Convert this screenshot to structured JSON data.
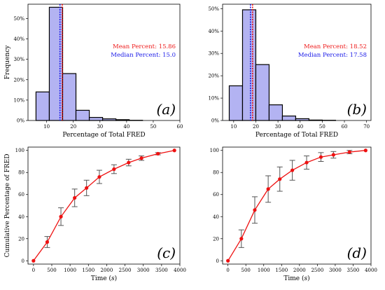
{
  "chart_data": [
    {
      "id": "a",
      "type": "bar",
      "panel_label": "(a)",
      "xlabel": "Percentage of Total FRED",
      "ylabel": "Frequency",
      "xlim": [
        3,
        60
      ],
      "ylim": [
        0,
        0.57
      ],
      "xticks": [
        10,
        20,
        30,
        40,
        50,
        60
      ],
      "yticks": [
        0,
        0.1,
        0.2,
        0.3,
        0.4,
        0.5
      ],
      "ytick_labels": [
        "0%",
        "10%",
        "20%",
        "30%",
        "40%",
        "50%"
      ],
      "bins": [
        {
          "x0": 6,
          "x1": 11,
          "value": 0.14
        },
        {
          "x0": 11,
          "x1": 16,
          "value": 0.555
        },
        {
          "x0": 16,
          "x1": 21,
          "value": 0.23
        },
        {
          "x0": 21,
          "x1": 26,
          "value": 0.05
        },
        {
          "x0": 26,
          "x1": 31,
          "value": 0.015
        },
        {
          "x0": 31,
          "x1": 36,
          "value": 0.008
        },
        {
          "x0": 36,
          "x1": 41,
          "value": 0.004
        },
        {
          "x0": 41,
          "x1": 46,
          "value": 0.001
        }
      ],
      "mean_value": 15.86,
      "median_value": 15.0,
      "mean_text": "Mean Percent: 15.86",
      "median_text": "Median Percent: 15.0"
    },
    {
      "id": "b",
      "type": "bar",
      "panel_label": "(b)",
      "xlabel": "Percentage of Total FRED",
      "ylabel": "",
      "xlim": [
        5,
        72
      ],
      "ylim": [
        0,
        0.52
      ],
      "xticks": [
        10,
        20,
        30,
        40,
        50,
        60,
        70
      ],
      "yticks": [
        0,
        0.1,
        0.2,
        0.3,
        0.4,
        0.5
      ],
      "ytick_labels": [
        "0%",
        "10%",
        "20%",
        "30%",
        "40%",
        "50%"
      ],
      "bins": [
        {
          "x0": 8,
          "x1": 14,
          "value": 0.155
        },
        {
          "x0": 14,
          "x1": 20,
          "value": 0.495
        },
        {
          "x0": 20,
          "x1": 26,
          "value": 0.25
        },
        {
          "x0": 26,
          "x1": 32,
          "value": 0.07
        },
        {
          "x0": 32,
          "x1": 38,
          "value": 0.02
        },
        {
          "x0": 38,
          "x1": 44,
          "value": 0.008
        },
        {
          "x0": 44,
          "x1": 50,
          "value": 0.002
        },
        {
          "x0": 50,
          "x1": 56,
          "value": 0.001
        }
      ],
      "mean_value": 18.52,
      "median_value": 17.58,
      "mean_text": "Mean Percent: 18.52",
      "median_text": "Median Percent: 17.58"
    },
    {
      "id": "c",
      "type": "line",
      "panel_label": "(c)",
      "xlabel": "Time (s)",
      "ylabel": "Cumulative Percentage of FRED",
      "xlim": [
        -150,
        4000
      ],
      "ylim": [
        -3,
        103
      ],
      "xticks": [
        0,
        500,
        1000,
        1500,
        2000,
        2500,
        3000,
        3500,
        4000
      ],
      "yticks": [
        0,
        20,
        40,
        60,
        80,
        100
      ],
      "x": [
        0,
        375,
        750,
        1125,
        1450,
        1800,
        2200,
        2600,
        2950,
        3400,
        3850
      ],
      "y": [
        0,
        17,
        40,
        57,
        66,
        76,
        83,
        89,
        93,
        97,
        100
      ],
      "err": [
        0,
        5,
        8,
        8,
        7,
        6,
        4,
        3,
        2,
        1,
        0
      ]
    },
    {
      "id": "d",
      "type": "line",
      "panel_label": "(d)",
      "xlabel": "Time (s)",
      "ylabel": "",
      "xlim": [
        -150,
        4000
      ],
      "ylim": [
        -3,
        103
      ],
      "xticks": [
        0,
        500,
        1000,
        1500,
        2000,
        2500,
        3000,
        3500,
        4000
      ],
      "yticks": [
        0,
        20,
        40,
        60,
        80,
        100
      ],
      "x": [
        0,
        375,
        750,
        1125,
        1450,
        1800,
        2200,
        2600,
        2950,
        3400,
        3850
      ],
      "y": [
        0,
        20,
        46,
        65,
        74,
        82,
        89,
        94,
        96,
        98.5,
        100
      ],
      "err": [
        0,
        8,
        12,
        12,
        11,
        9,
        6,
        4,
        3,
        1.5,
        0
      ]
    }
  ]
}
